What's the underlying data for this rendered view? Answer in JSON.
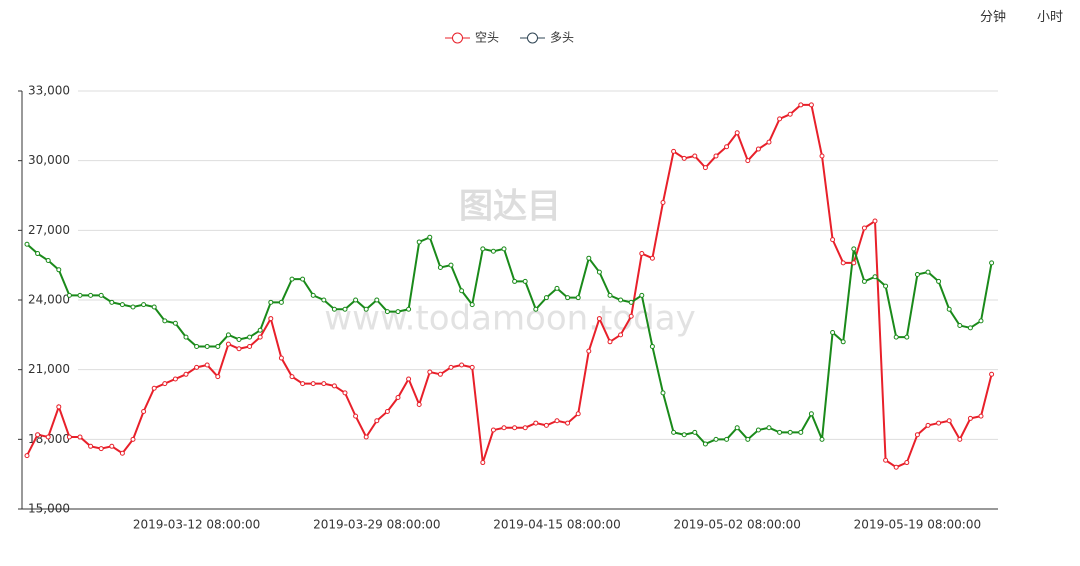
{
  "chart_data": {
    "type": "line",
    "watermark": "图达目",
    "watermark_url": "www.todamoon.today",
    "buttons": [
      "分钟",
      "小时"
    ],
    "categories": [
      null,
      null,
      null,
      null,
      null,
      null,
      null,
      null,
      null,
      null,
      null,
      null,
      null,
      null,
      null,
      null,
      "2019-03-12 08:00:00",
      null,
      null,
      null,
      null,
      null,
      null,
      null,
      null,
      null,
      null,
      null,
      null,
      null,
      null,
      null,
      null,
      "2019-03-29 08:00:00",
      null,
      null,
      null,
      null,
      null,
      null,
      null,
      null,
      null,
      null,
      null,
      null,
      null,
      null,
      null,
      null,
      "2019-04-15 08:00:00",
      null,
      null,
      null,
      null,
      null,
      null,
      null,
      null,
      null,
      null,
      null,
      null,
      null,
      null,
      null,
      null,
      "2019-05-02 08:00:00",
      null,
      null,
      null,
      null,
      null,
      null,
      null,
      null,
      null,
      null,
      null,
      null,
      null,
      null,
      null,
      null,
      "2019-05-19 08:00:00",
      null,
      null,
      null,
      null,
      null,
      null,
      null
    ],
    "series": [
      {
        "name": "空头",
        "color": "#e8202a",
        "values": [
          17300,
          18200,
          18100,
          19400,
          18100,
          18100,
          17700,
          17600,
          17700,
          17400,
          18000,
          19200,
          20200,
          20400,
          20600,
          20800,
          21100,
          21200,
          20700,
          22100,
          21900,
          22000,
          22400,
          23200,
          21500,
          20700,
          20400,
          20400,
          20400,
          20300,
          20000,
          19000,
          18100,
          18800,
          19200,
          19800,
          20600,
          19500,
          20900,
          20800,
          21100,
          21200,
          21100,
          17000,
          18400,
          18500,
          18500,
          18500,
          18700,
          18600,
          18800,
          18700,
          19100,
          21800,
          23200,
          22200,
          22500,
          23300,
          26000,
          25800,
          28200,
          30400,
          30100,
          30200,
          29700,
          30200,
          30600,
          31200,
          30000,
          30500,
          30800,
          31800,
          32000,
          32400,
          32400,
          30200,
          26600,
          25600,
          25600,
          27100,
          27400,
          17100,
          16800,
          17000,
          18200,
          18600,
          18700,
          18800,
          18000,
          18900,
          19000,
          20800
        ]
      },
      {
        "name": "多头",
        "color": "#1a8a1a",
        "legend_color": "#2f4554",
        "values": [
          26400,
          26000,
          25700,
          25300,
          24200,
          24200,
          24200,
          24200,
          23900,
          23800,
          23700,
          23800,
          23700,
          23100,
          23000,
          22400,
          22000,
          22000,
          22000,
          22500,
          22300,
          22400,
          22700,
          23900,
          23900,
          24900,
          24900,
          24200,
          24000,
          23600,
          23600,
          24000,
          23600,
          24000,
          23500,
          23500,
          23600,
          26500,
          26700,
          25400,
          25500,
          24400,
          23800,
          26200,
          26100,
          26200,
          24800,
          24800,
          23600,
          24100,
          24500,
          24100,
          24100,
          25800,
          25200,
          24200,
          24000,
          23900,
          24200,
          22000,
          20000,
          18300,
          18200,
          18300,
          17800,
          18000,
          18000,
          18500,
          18000,
          18400,
          18500,
          18300,
          18300,
          18300,
          19100,
          18000,
          22600,
          22200,
          26200,
          24800,
          25000,
          24600,
          22400,
          22400,
          25100,
          25200,
          24800,
          23600,
          22900,
          22800,
          23100,
          25600
        ]
      }
    ],
    "ylim": [
      15000,
      33000
    ],
    "yticks": [
      {
        "value": 15000,
        "label": "15,000"
      },
      {
        "value": 18000,
        "label": "18,000"
      },
      {
        "value": 21000,
        "label": "21,000"
      },
      {
        "value": 24000,
        "label": "24,000"
      },
      {
        "value": 27000,
        "label": "27,000"
      },
      {
        "value": 30000,
        "label": "30,000"
      },
      {
        "value": 33000,
        "label": "33,000"
      }
    ],
    "grid": true
  }
}
